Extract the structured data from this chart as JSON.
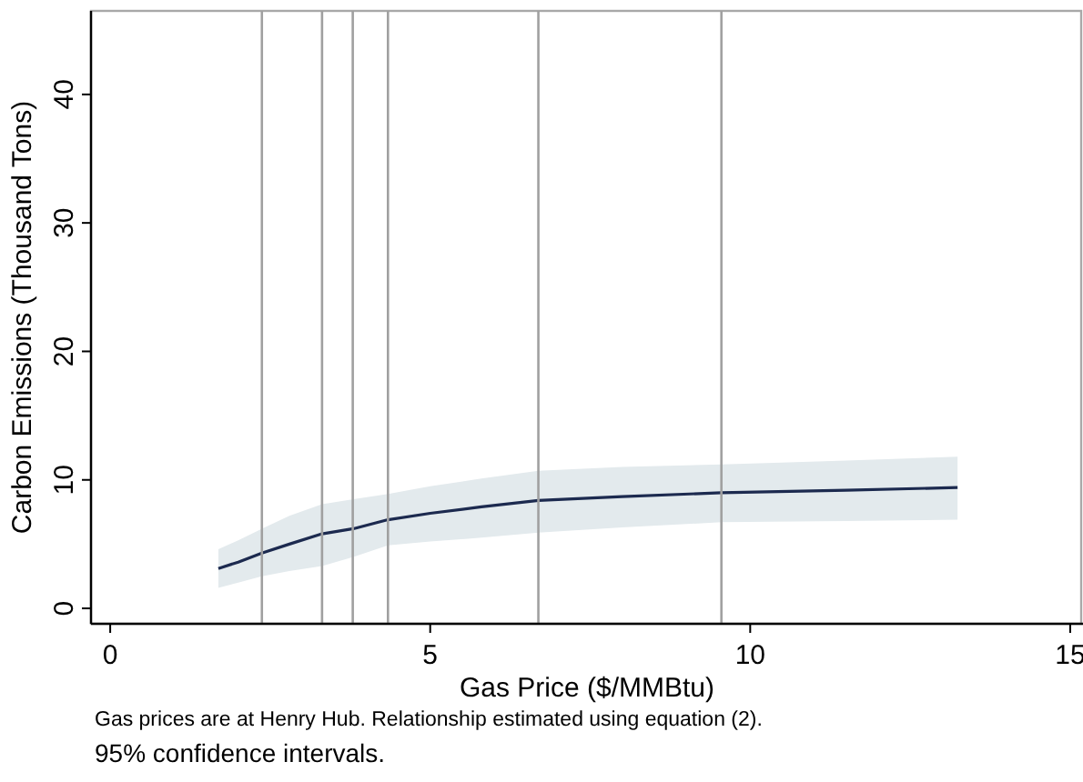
{
  "chart_data": {
    "type": "line",
    "xlabel": "Gas Price ($/MMBtu)",
    "ylabel": "Carbon Emissions (Thousand Tons)",
    "xlim": [
      -0.3,
      15.2
    ],
    "ylim": [
      -1.2,
      46.5
    ],
    "xticks": [
      0,
      5,
      10,
      15
    ],
    "yticks": [
      0,
      10,
      20,
      30,
      40
    ],
    "grid": false,
    "series": [
      {
        "color": "#1c2a4f",
        "x": [
          1.69,
          2.0,
          2.37,
          2.8,
          3.31,
          3.8,
          4.34,
          5.0,
          5.8,
          6.69,
          8.0,
          9.55,
          11.5,
          13.24
        ],
        "values": [
          3.1,
          3.6,
          4.3,
          5.0,
          5.8,
          6.2,
          6.9,
          7.4,
          7.9,
          8.4,
          8.7,
          9.0,
          9.2,
          9.4
        ],
        "lower": [
          1.6,
          2.0,
          2.5,
          2.9,
          3.3,
          4.0,
          4.9,
          5.2,
          5.5,
          5.9,
          6.3,
          6.7,
          6.8,
          6.9
        ],
        "upper": [
          4.6,
          5.3,
          6.2,
          7.2,
          8.1,
          8.5,
          8.9,
          9.5,
          10.1,
          10.7,
          11.0,
          11.2,
          11.5,
          11.8
        ]
      }
    ],
    "ref_lines": [
      {
        "axis": "x",
        "value": 2.37,
        "color": "#a0a0a0"
      },
      {
        "axis": "x",
        "value": 3.31,
        "color": "#a0a0a0"
      },
      {
        "axis": "x",
        "value": 3.79,
        "color": "#a0a0a0"
      },
      {
        "axis": "x",
        "value": 4.34,
        "color": "#a0a0a0"
      },
      {
        "axis": "x",
        "value": 6.69,
        "color": "#a0a0a0"
      },
      {
        "axis": "x",
        "value": 9.55,
        "color": "#a0a0a0"
      }
    ],
    "annotations": [
      "Gas prices are at Henry Hub.  Relationship estimated using equation (2).",
      "95% confidence intervals."
    ]
  }
}
